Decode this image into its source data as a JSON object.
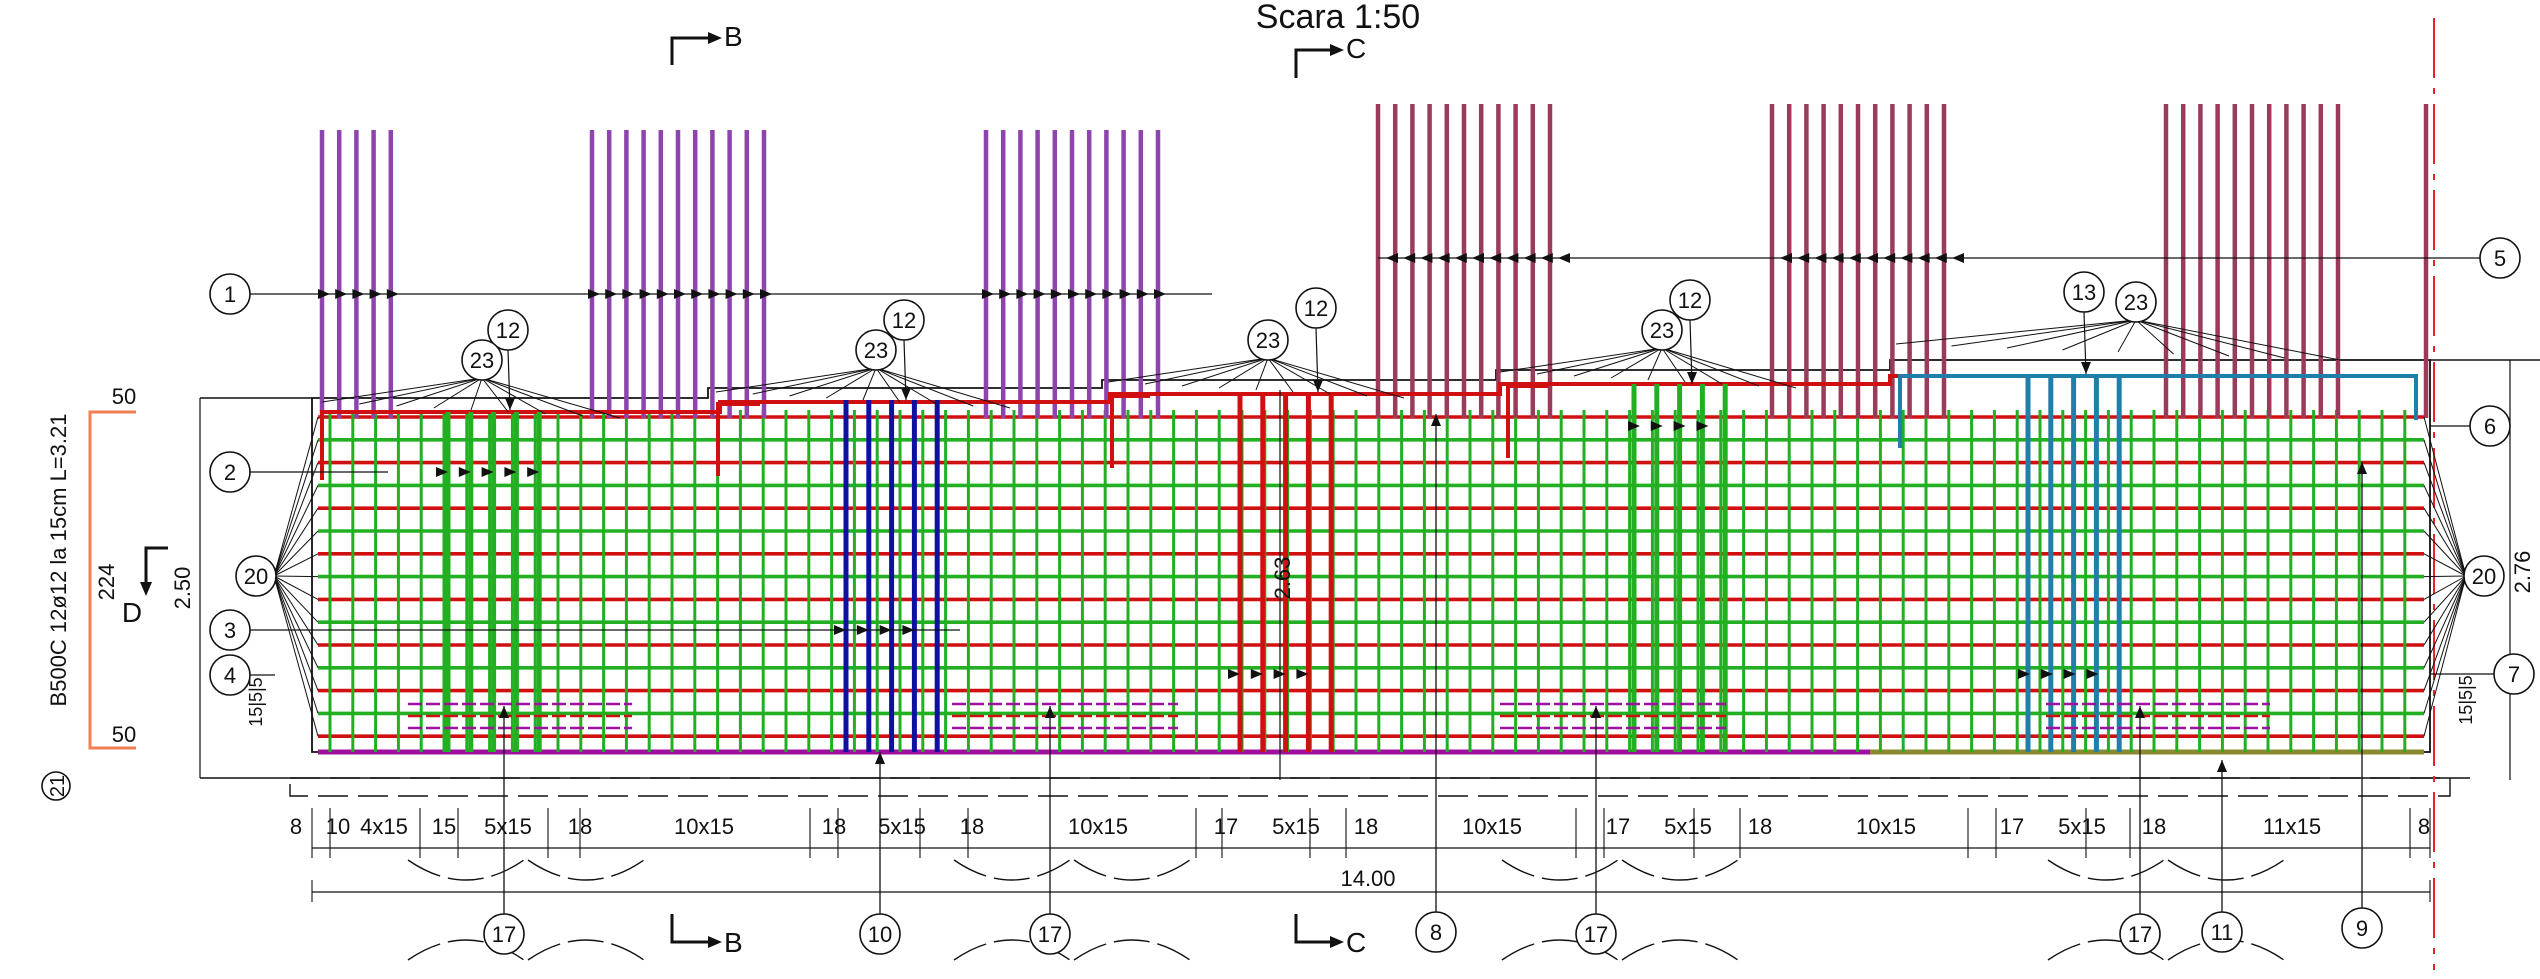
{
  "title": "Scara 1:50",
  "sections": {
    "b_top": "B",
    "b_bottom": "B",
    "c_top": "C",
    "c_bottom": "C",
    "d": "D"
  },
  "overall": {
    "length": "14.00",
    "height_left": "2.50",
    "height_mid": "2.63",
    "height_right": "2.76"
  },
  "bar21": {
    "mark": "21",
    "spec": "B500C  12ø12  la  15cm  L=3.21",
    "top": "50",
    "middle": "224",
    "bottom": "50"
  },
  "bottom_dims": [
    "8",
    "10",
    "4x15",
    "15",
    "5x15",
    "18",
    "10x15",
    "18",
    "5x15",
    "18",
    "10x15",
    "17",
    "5x15",
    "18",
    "10x15",
    "17",
    "5x15",
    "18",
    "10x15",
    "17",
    "5x15",
    "18",
    "11x15",
    "8"
  ],
  "side_small": {
    "left": "15|5|5",
    "right": "15|5|5"
  },
  "marks": [
    "1",
    "2",
    "3",
    "4",
    "5",
    "6",
    "7",
    "8",
    "9",
    "10",
    "11",
    "12",
    "12",
    "12",
    "12",
    "13",
    "17",
    "17",
    "17",
    "17",
    "20",
    "20",
    "23",
    "23",
    "23",
    "23",
    "23"
  ],
  "colors": {
    "purple": "#8e44ad",
    "maroon": "#9b3b5a",
    "red": "#d01010",
    "green": "#22b022",
    "blue": "#1010a0",
    "teal": "#1f7fa8",
    "magenta": "#a010a0",
    "orange": "#f08050",
    "olive": "#8a8a30",
    "axis": "#ee2222"
  }
}
